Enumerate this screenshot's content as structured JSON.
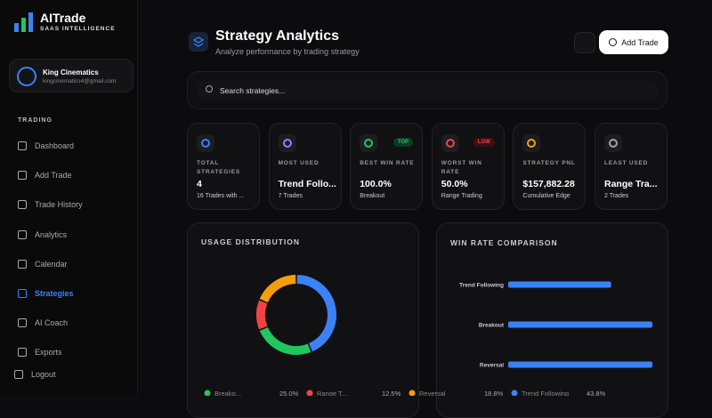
{
  "brand": {
    "name": "AITrade",
    "tagline": "SAAS INTELLIGENCE"
  },
  "user": {
    "name": "King Cinematics",
    "email": "kingcinematics4@gmail.com"
  },
  "nav": {
    "section": "TRADING",
    "items": [
      "Dashboard",
      "Add Trade",
      "Trade History",
      "Analytics",
      "Calendar",
      "Strategies",
      "AI Coach",
      "Exports"
    ],
    "active": 5,
    "logout": "Logout"
  },
  "header": {
    "title": "Strategy Analytics",
    "subtitle": "Analyze performance by trading strategy",
    "button": "Add Trade"
  },
  "search": {
    "placeholder": "Search strategies..."
  },
  "cards": [
    {
      "label": "TOTAL STRATEGIES",
      "value": "4",
      "sub": "16 Trades with ...",
      "icon_color": "#3b82f6"
    },
    {
      "label": "MOST USED",
      "value": "Trend Follo...",
      "sub": "7 Trades",
      "icon_color": "#818cf8"
    },
    {
      "label": "BEST WIN RATE",
      "value": "100.0%",
      "sub": "Breakout",
      "badge": "TOP",
      "icon_color": "#22c55e"
    },
    {
      "label": "WORST WIN RATE",
      "value": "50.0%",
      "sub": "Range Trading",
      "badge": "LOW",
      "icon_color": "#ef4444"
    },
    {
      "label": "STRATEGY PNL",
      "value": "$157,882.28",
      "sub": "Cumulative Edge",
      "icon_color": "#f59e0b"
    },
    {
      "label": "LEAST USED",
      "value": "Range Tra...",
      "sub": "2 Trades",
      "icon_color": "#9ca3af"
    }
  ],
  "chart_data": [
    {
      "type": "pie",
      "title": "USAGE DISTRIBUTION",
      "categories": [
        "Breako...",
        "Range T...",
        "Reversal",
        "Trend Following"
      ],
      "values": [
        25,
        12.5,
        18.75,
        43.75
      ],
      "value_labels": [
        "25.0%",
        "12.5%",
        "18.8%",
        "43.8%"
      ],
      "colors": [
        "#22c55e",
        "#ef4444",
        "#f59e0b",
        "#3b82f6"
      ]
    },
    {
      "type": "bar",
      "title": "WIN RATE COMPARISON",
      "categories": [
        "Trend Following",
        "Breakout",
        "Reversal"
      ],
      "values": [
        71.4,
        100,
        100
      ],
      "xlim": [
        0,
        100
      ],
      "color": "#3b82f6"
    }
  ]
}
